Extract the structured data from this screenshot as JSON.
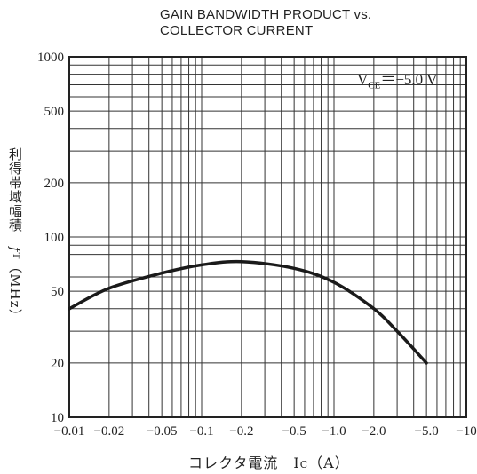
{
  "chart_data": {
    "type": "line",
    "title": "GAIN BANDWIDTH PRODUCT vs.",
    "subtitle": "COLLECTOR CURRENT",
    "xlabel": "コレクタ電流　I_C（A）",
    "xlabel_parts": {
      "main": "コレクタ電流",
      "symbol": "I",
      "sub": "C",
      "unit": "（A）"
    },
    "ylabel": "利得帯域幅積　f_T（MHz）",
    "ylabel_parts": {
      "main": "利得帯域幅積",
      "symbol": "f",
      "sub": "T",
      "unit": "（MHz）"
    },
    "x_scale": "log",
    "y_scale": "log",
    "xlim": [
      0.01,
      10
    ],
    "ylim": [
      10,
      1000
    ],
    "x_ticks": [
      0.01,
      0.02,
      0.05,
      0.1,
      0.2,
      0.5,
      1,
      2,
      5,
      10
    ],
    "x_tick_labels": [
      "−0.01",
      "−0.02",
      "−0.05",
      "−0.1",
      "−0.2",
      "−0.5",
      "−1.0",
      "−2.0",
      "−5.0",
      "−10"
    ],
    "y_ticks": [
      10,
      20,
      50,
      100,
      200,
      500,
      1000
    ],
    "y_tick_labels": [
      "10",
      "20",
      "50",
      "100",
      "200",
      "500",
      "1000"
    ],
    "grid": true,
    "annotation": {
      "symbol": "V",
      "sub": "CE",
      "value": "＝−5.0 V"
    },
    "series": [
      {
        "x": [
          0.01,
          0.02,
          0.05,
          0.1,
          0.2,
          0.5,
          1.0,
          2.0,
          3.0,
          5.0
        ],
        "y": [
          40,
          52,
          63,
          70,
          73,
          67,
          56,
          40,
          30,
          20
        ]
      }
    ]
  }
}
